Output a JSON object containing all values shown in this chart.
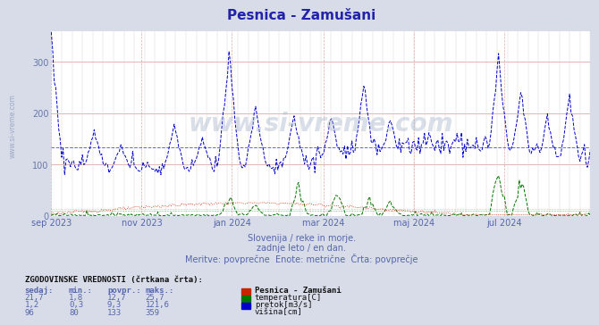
{
  "title": "Pesnica - Zamušani",
  "title_color": "#2222aa",
  "bg_color": "#d8dce8",
  "plot_bg_color": "#ffffff",
  "subtitle_lines": [
    "Slovenija / reke in morje.",
    "zadnje leto / en dan.",
    "Meritve: povprečne  Enote: metrične  Črta: povprečje"
  ],
  "subtitle_color": "#5566aa",
  "ylim": [
    0,
    360
  ],
  "yticks": [
    0,
    100,
    200,
    300
  ],
  "grid_color": "#ddaaaa",
  "grid_minor_color": "#ddcccc",
  "watermark": "www.si-vreme.com",
  "watermark_color": "#aab8cc",
  "series_temperatura": {
    "color": "#cc2200",
    "avg": 12.7,
    "min": 1.8,
    "max": 25.7,
    "current": 21.7,
    "label": "temperatura[C]"
  },
  "series_pretok": {
    "color": "#007700",
    "avg": 9.3,
    "min": 0.3,
    "max": 121.6,
    "current": 1.2,
    "label": "pretok[m3/s]"
  },
  "series_visina": {
    "color": "#0000cc",
    "avg": 133,
    "min": 80,
    "max": 359,
    "current": 96,
    "label": "višina[cm]"
  },
  "x_tick_labels": [
    "sep 2023",
    "nov 2023",
    "jan 2024",
    "mar 2024",
    "maj 2024",
    "jul 2024"
  ],
  "x_tick_positions": [
    0,
    61,
    122,
    184,
    245,
    306
  ],
  "n_points": 365,
  "legend_title": "Pesnica - Zamušani",
  "table_header": "ZGODOVINSKE VREDNOSTI (črtkana črta):",
  "table_cols": [
    "sedaj:",
    "min.:",
    "povpr.:",
    "maks.:"
  ],
  "table_rows": [
    [
      "21,7",
      "1,8",
      "12,7",
      "25,7"
    ],
    [
      "1,2",
      "0,3",
      "9,3",
      "121,6"
    ],
    [
      "96",
      "80",
      "133",
      "359"
    ]
  ]
}
